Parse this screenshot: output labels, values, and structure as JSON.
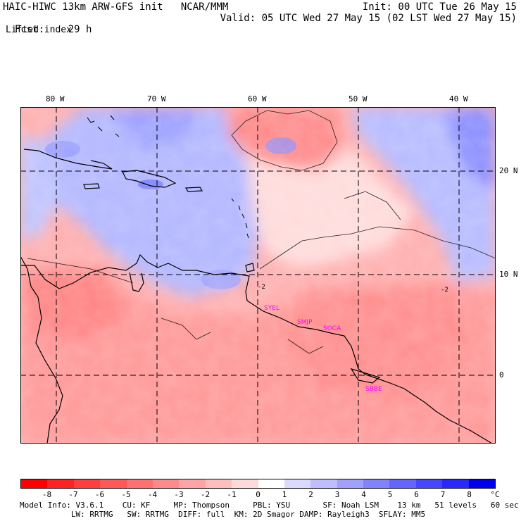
{
  "header": {
    "model_line": "HAIC-HIWC 13km ARW-GFS init   NCAR/MMM",
    "init_line": "Init: 00 UTC Tue 26 May 15",
    "fcst_label": "Fcst:",
    "fcst_value": "29 h",
    "valid_line": "Valid: 05 UTC Wed 27 May 15 (02 LST Wed 27 May 15)",
    "field_name": "Lifted index"
  },
  "map": {
    "lon_labels": [
      "80 W",
      "70 W",
      "60 W",
      "50 W",
      "40 W"
    ],
    "lat_labels": [
      "20 N",
      "10 N",
      "0"
    ],
    "stations": [
      "SYEL",
      "SMJP",
      "SOCA",
      "SBBE"
    ],
    "contour_labels": [
      "-2",
      "-2"
    ]
  },
  "colorbar": {
    "unit": "°C",
    "ticks": [
      "-8",
      "-7",
      "-6",
      "-5",
      "-4",
      "-3",
      "-2",
      "-1",
      "0",
      "1",
      "2",
      "3",
      "4",
      "5",
      "6",
      "7",
      "8"
    ],
    "colors": [
      "#ff0000",
      "#ff2222",
      "#ff3e3e",
      "#ff5858",
      "#ff7070",
      "#ff8a8a",
      "#ffa4a4",
      "#ffbebe",
      "#ffdada",
      "#ffffff",
      "#dadaff",
      "#bebeff",
      "#a0a0ff",
      "#8282ff",
      "#6464ff",
      "#4646ff",
      "#2828ff",
      "#0000ee"
    ]
  },
  "footer": {
    "line1": "Model Info: V3.6.1    CU: KF     MP: Thompson     PBL: YSU       SF: Noah LSM    13 km   51 levels   60 sec",
    "line2": "           LW: RRTMG   SW: RRTMG  DIFF: full  KM: 2D Smagor DAMP: Rayleigh3  SFLAY: MM5"
  }
}
